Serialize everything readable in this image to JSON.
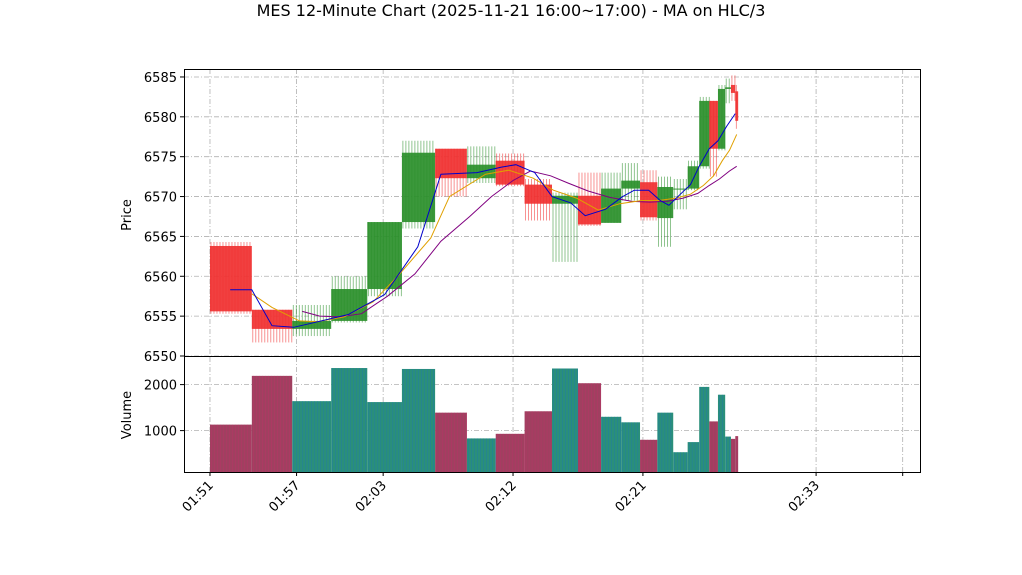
{
  "chart_data": {
    "type": "ohlc-with-volume",
    "title": "MES 12-Minute Chart (2025-11-21 16:00~17:00) - MA on HLC/3",
    "xlabel": "",
    "price_panel": {
      "ylabel": "Price",
      "ylim": [
        6550,
        6586
      ],
      "yticks": [
        "6550",
        "6555",
        "6560",
        "6565",
        "6570",
        "6575",
        "6580",
        "6585"
      ],
      "grid": true
    },
    "volume_panel": {
      "ylabel": "Volume",
      "ylim": [
        100,
        2600
      ],
      "yticks": [
        "1000",
        "2000"
      ],
      "grid": true
    },
    "x_tick_labels": [
      "01:51",
      "01:57",
      "02:03",
      "02:12",
      "02:21",
      "02:33",
      ""
    ],
    "x_tick_times": [
      111,
      117,
      123,
      132,
      141,
      153,
      159
    ],
    "x_range_minutes": [
      109.2,
      160.2
    ],
    "colors": {
      "up": "#2a8f2a",
      "down": "#f03030",
      "volume_up": "#2a8f7a",
      "volume_down": "#a04060",
      "volume_edge_up": "#1f77b4",
      "volume_edge_down": "#c0306a",
      "ma_short": "#0000cc",
      "ma_mid": "#e0a000",
      "ma_long": "#800080"
    },
    "bars": [
      {
        "t0": 111.0,
        "t1": 113.9,
        "open": 6563.8,
        "high": 6564.3,
        "low": 6555.3,
        "close": 6555.6,
        "volume": 1130
      },
      {
        "t0": 113.9,
        "t1": 116.7,
        "open": 6555.8,
        "high": 6555.8,
        "low": 6551.7,
        "close": 6553.4,
        "volume": 2190
      },
      {
        "t0": 116.7,
        "t1": 119.4,
        "open": 6553.4,
        "high": 6556.4,
        "low": 6552.5,
        "close": 6554.4,
        "volume": 1640
      },
      {
        "t0": 119.4,
        "t1": 121.9,
        "open": 6554.4,
        "high": 6560.0,
        "low": 6554.2,
        "close": 6558.4,
        "volume": 2360
      },
      {
        "t0": 121.9,
        "t1": 124.3,
        "open": 6558.4,
        "high": 6566.8,
        "low": 6557.5,
        "close": 6566.8,
        "volume": 1620
      },
      {
        "t0": 124.3,
        "t1": 126.6,
        "open": 6566.8,
        "high": 6577.0,
        "low": 6566.0,
        "close": 6575.5,
        "volume": 2340
      },
      {
        "t0": 126.6,
        "t1": 128.8,
        "open": 6576.0,
        "high": 6576.0,
        "low": 6570.0,
        "close": 6572.3,
        "volume": 1390
      },
      {
        "t0": 128.8,
        "t1": 130.8,
        "open": 6572.3,
        "high": 6576.3,
        "low": 6571.7,
        "close": 6574.0,
        "volume": 830
      },
      {
        "t0": 130.8,
        "t1": 132.8,
        "open": 6574.5,
        "high": 6575.4,
        "low": 6571.3,
        "close": 6571.5,
        "volume": 930
      },
      {
        "t0": 132.8,
        "t1": 134.7,
        "open": 6571.5,
        "high": 6572.2,
        "low": 6567.0,
        "close": 6569.1,
        "volume": 1420
      },
      {
        "t0": 134.7,
        "t1": 136.5,
        "open": 6569.1,
        "high": 6570.5,
        "low": 6561.8,
        "close": 6570.1,
        "volume": 2350
      },
      {
        "t0": 136.5,
        "t1": 138.1,
        "open": 6570.1,
        "high": 6573.0,
        "low": 6566.3,
        "close": 6566.5,
        "volume": 2030
      },
      {
        "t0": 138.1,
        "t1": 139.5,
        "open": 6566.7,
        "high": 6573.0,
        "low": 6566.7,
        "close": 6571.0,
        "volume": 1300
      },
      {
        "t0": 139.5,
        "t1": 140.8,
        "open": 6571.0,
        "high": 6574.2,
        "low": 6569.5,
        "close": 6572.0,
        "volume": 1180
      },
      {
        "t0": 140.8,
        "t1": 142.0,
        "open": 6571.8,
        "high": 6573.3,
        "low": 6567.0,
        "close": 6567.4,
        "volume": 800
      },
      {
        "t0": 142.0,
        "t1": 143.1,
        "open": 6567.3,
        "high": 6572.5,
        "low": 6563.7,
        "close": 6571.2,
        "volume": 1390
      },
      {
        "t0": 143.1,
        "t1": 144.1,
        "open": 6570.9,
        "high": 6572.2,
        "low": 6568.4,
        "close": 6571.0,
        "volume": 530
      },
      {
        "t0": 144.1,
        "t1": 144.9,
        "open": 6571.0,
        "high": 6574.5,
        "low": 6570.8,
        "close": 6573.8,
        "volume": 750
      },
      {
        "t0": 144.9,
        "t1": 145.6,
        "open": 6573.8,
        "high": 6582.5,
        "low": 6573.5,
        "close": 6582.0,
        "volume": 1950
      },
      {
        "t0": 145.6,
        "t1": 146.2,
        "open": 6582.0,
        "high": 6582.0,
        "low": 6572.5,
        "close": 6576.0,
        "volume": 1200
      },
      {
        "t0": 146.2,
        "t1": 146.7,
        "open": 6576.0,
        "high": 6584.0,
        "low": 6575.8,
        "close": 6583.5,
        "volume": 1780
      },
      {
        "t0": 146.7,
        "t1": 147.1,
        "open": 6583.5,
        "high": 6584.8,
        "low": 6581.7,
        "close": 6583.7,
        "volume": 870
      },
      {
        "t0": 147.1,
        "t1": 147.4,
        "open": 6584.0,
        "high": 6585.2,
        "low": 6582.0,
        "close": 6583.0,
        "volume": 820
      },
      {
        "t0": 147.4,
        "t1": 147.6,
        "open": 6583.2,
        "high": 6584.0,
        "low": 6578.5,
        "close": 6579.5,
        "volume": 880
      }
    ],
    "ma_short": [
      {
        "t": 112.4,
        "v": 6558.3
      },
      {
        "t": 113.9,
        "v": 6558.3
      },
      {
        "t": 115.3,
        "v": 6553.8
      },
      {
        "t": 116.8,
        "v": 6553.6
      },
      {
        "t": 118.0,
        "v": 6554.1
      },
      {
        "t": 120.6,
        "v": 6555.2
      },
      {
        "t": 123.1,
        "v": 6557.7
      },
      {
        "t": 125.4,
        "v": 6563.7
      },
      {
        "t": 127.0,
        "v": 6572.8
      },
      {
        "t": 129.5,
        "v": 6573.0
      },
      {
        "t": 131.2,
        "v": 6573.7
      },
      {
        "t": 132.2,
        "v": 6574.0
      },
      {
        "t": 133.5,
        "v": 6573.0
      },
      {
        "t": 134.7,
        "v": 6570.0
      },
      {
        "t": 136.0,
        "v": 6569.2
      },
      {
        "t": 137.0,
        "v": 6567.6
      },
      {
        "t": 138.4,
        "v": 6568.4
      },
      {
        "t": 139.6,
        "v": 6570.0
      },
      {
        "t": 140.4,
        "v": 6570.8
      },
      {
        "t": 141.4,
        "v": 6570.8
      },
      {
        "t": 142.2,
        "v": 6569.5
      },
      {
        "t": 142.8,
        "v": 6568.9
      },
      {
        "t": 143.6,
        "v": 6570.3
      },
      {
        "t": 144.3,
        "v": 6571.5
      },
      {
        "t": 144.9,
        "v": 6573.8
      },
      {
        "t": 145.6,
        "v": 6576.0
      },
      {
        "t": 146.2,
        "v": 6577.0
      },
      {
        "t": 146.8,
        "v": 6578.8
      },
      {
        "t": 147.4,
        "v": 6580.4
      }
    ],
    "ma_mid": [
      {
        "t": 113.9,
        "v": 6557.8
      },
      {
        "t": 115.3,
        "v": 6556.1
      },
      {
        "t": 117.2,
        "v": 6554.4
      },
      {
        "t": 118.4,
        "v": 6554.3
      },
      {
        "t": 120.3,
        "v": 6554.9
      },
      {
        "t": 122.3,
        "v": 6556.8
      },
      {
        "t": 124.0,
        "v": 6560.0
      },
      {
        "t": 126.3,
        "v": 6564.8
      },
      {
        "t": 127.6,
        "v": 6570.0
      },
      {
        "t": 130.1,
        "v": 6572.8
      },
      {
        "t": 131.7,
        "v": 6573.3
      },
      {
        "t": 133.4,
        "v": 6572.3
      },
      {
        "t": 134.8,
        "v": 6570.8
      },
      {
        "t": 136.4,
        "v": 6569.8
      },
      {
        "t": 137.9,
        "v": 6568.3
      },
      {
        "t": 139.4,
        "v": 6569.1
      },
      {
        "t": 140.9,
        "v": 6569.5
      },
      {
        "t": 142.1,
        "v": 6569.5
      },
      {
        "t": 143.3,
        "v": 6569.8
      },
      {
        "t": 144.3,
        "v": 6570.3
      },
      {
        "t": 145.2,
        "v": 6571.4
      },
      {
        "t": 145.9,
        "v": 6572.6
      },
      {
        "t": 146.5,
        "v": 6574.5
      },
      {
        "t": 147.0,
        "v": 6575.8
      },
      {
        "t": 147.5,
        "v": 6577.8
      }
    ],
    "ma_long": [
      {
        "t": 117.4,
        "v": 6555.6
      },
      {
        "t": 118.6,
        "v": 6555.0
      },
      {
        "t": 120.0,
        "v": 6554.9
      },
      {
        "t": 121.5,
        "v": 6555.3
      },
      {
        "t": 123.3,
        "v": 6557.5
      },
      {
        "t": 125.2,
        "v": 6560.3
      },
      {
        "t": 127.0,
        "v": 6564.4
      },
      {
        "t": 129.0,
        "v": 6567.5
      },
      {
        "t": 130.5,
        "v": 6570.0
      },
      {
        "t": 132.0,
        "v": 6572.0
      },
      {
        "t": 133.2,
        "v": 6573.2
      },
      {
        "t": 134.6,
        "v": 6572.6
      },
      {
        "t": 135.8,
        "v": 6571.7
      },
      {
        "t": 137.2,
        "v": 6570.7
      },
      {
        "t": 138.7,
        "v": 6569.9
      },
      {
        "t": 140.2,
        "v": 6569.4
      },
      {
        "t": 141.5,
        "v": 6569.3
      },
      {
        "t": 142.7,
        "v": 6569.4
      },
      {
        "t": 143.8,
        "v": 6569.8
      },
      {
        "t": 144.8,
        "v": 6570.4
      },
      {
        "t": 145.6,
        "v": 6571.4
      },
      {
        "t": 146.3,
        "v": 6572.2
      },
      {
        "t": 147.0,
        "v": 6573.2
      },
      {
        "t": 147.5,
        "v": 6573.8
      }
    ]
  }
}
